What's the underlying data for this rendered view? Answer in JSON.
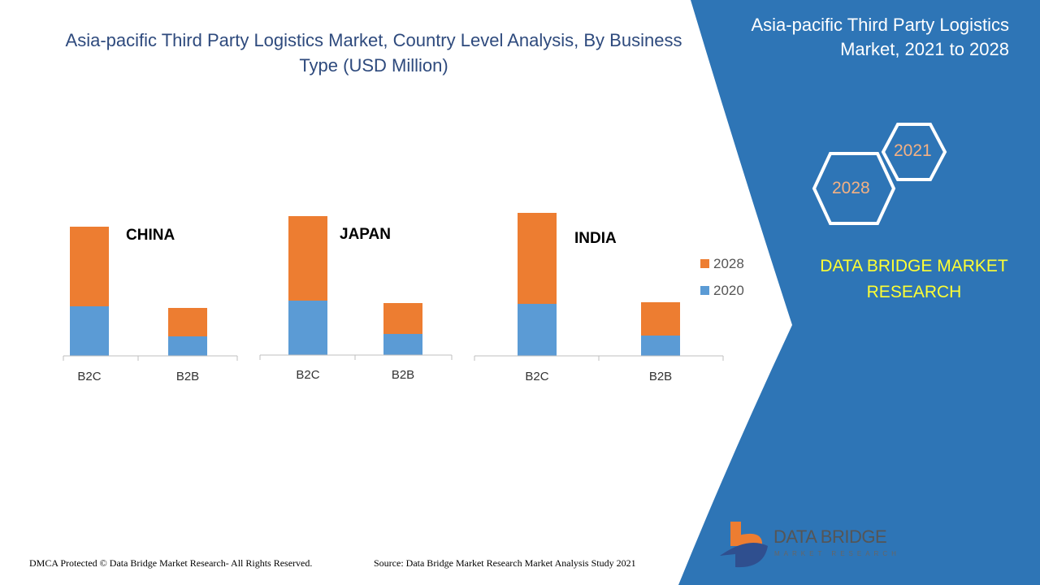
{
  "title": "Asia-pacific Third Party Logistics Market, Country Level Analysis, By Business Type (USD Million)",
  "side_title": "Asia-pacific Third Party Logistics Market, 2021 to 2028",
  "hex_labels": [
    "2021",
    "2028"
  ],
  "brand": "DATA BRIDGE MARKET RESEARCH",
  "logo": {
    "name": "DATA BRIDGE",
    "tagline": "MARKET RESEARCH"
  },
  "footer": {
    "left": "DMCA Protected © Data Bridge Market Research- All Rights Reserved.",
    "right": "Source: Data Bridge Market Research Market Analysis Study 2021"
  },
  "colors": {
    "2020": "#5b9bd5",
    "2028": "#ed7d31",
    "panel": "#2e75b6",
    "title": "#2e4a7d",
    "brand": "#ffff33"
  },
  "chart_data": {
    "type": "bar",
    "stacked": true,
    "legend": "right",
    "grid": false,
    "value_axis_shown": false,
    "legend_entries": [
      "2028",
      "2020"
    ],
    "panels": [
      {
        "title": "CHINA",
        "categories": [
          "B2C",
          "B2B"
        ],
        "series": [
          {
            "name": "2020",
            "values": [
              61,
              24
            ]
          },
          {
            "name": "2028",
            "values": [
              98,
              35
            ]
          }
        ]
      },
      {
        "title": "JAPAN",
        "categories": [
          "B2C",
          "B2B"
        ],
        "series": [
          {
            "name": "2020",
            "values": [
              67,
              26
            ]
          },
          {
            "name": "2028",
            "values": [
              104,
              38
            ]
          }
        ]
      },
      {
        "title": "INDIA",
        "categories": [
          "B2C",
          "B2B"
        ],
        "series": [
          {
            "name": "2020",
            "values": [
              64,
              25
            ]
          },
          {
            "name": "2028",
            "values": [
              112,
              41
            ]
          }
        ]
      }
    ]
  }
}
